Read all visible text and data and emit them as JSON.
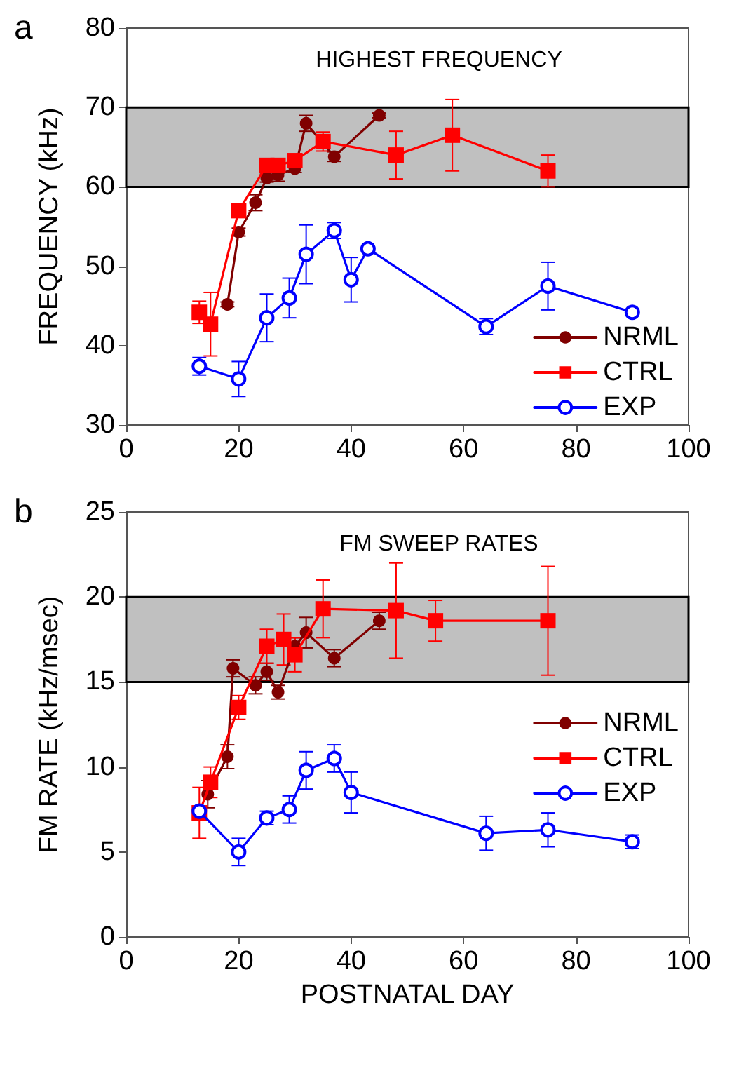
{
  "chart_data": [
    {
      "type": "line",
      "title": "HIGHEST FREQUENCY",
      "ylabel": "FREQUENCY (kHz)",
      "annotations": [
        "a"
      ],
      "xlim": [
        0,
        100
      ],
      "xticks": [
        0,
        20,
        40,
        60,
        80,
        100
      ],
      "ylim": [
        30,
        80
      ],
      "yticks": [
        30,
        40,
        50,
        60,
        70,
        80
      ],
      "grid": false,
      "legend": "right",
      "bands": [
        {
          "axis": "y",
          "from": 60,
          "to": 70,
          "color": "#c0c0c0"
        }
      ],
      "series": [
        {
          "name": "NRML",
          "color": "#800000",
          "marker": "circle",
          "x": [
            18,
            20,
            23,
            25,
            27,
            30,
            32,
            37,
            45
          ],
          "values": [
            45.2,
            54.3,
            58,
            61.1,
            61.5,
            62.3,
            68,
            63.8,
            69
          ],
          "errors": [
            0.3,
            0.5,
            1,
            0.5,
            0.8,
            0.5,
            1,
            0.6,
            0.3
          ]
        },
        {
          "name": "CTRL",
          "color": "#ff0000",
          "marker": "square",
          "x": [
            13,
            15,
            20,
            25,
            27,
            30,
            35,
            48,
            58,
            75
          ],
          "values": [
            44.2,
            42.7,
            57,
            62.7,
            62.7,
            63.3,
            65.7,
            64,
            66.5,
            62
          ],
          "errors": [
            1.4,
            4,
            0.8,
            0.5,
            0.5,
            0.8,
            1.2,
            3,
            4.5,
            2
          ]
        },
        {
          "name": "EXP",
          "color": "#0000ff",
          "marker": "open_circle",
          "x": [
            13,
            20,
            25,
            29,
            32,
            37,
            40,
            43,
            64,
            75,
            90
          ],
          "values": [
            37.4,
            35.8,
            43.5,
            46,
            51.5,
            54.5,
            48.3,
            52.2,
            42.4,
            47.5,
            44.2
          ],
          "errors": [
            1.1,
            2.2,
            3,
            2.5,
            3.7,
            1.0,
            2.8,
            null,
            1,
            3,
            null
          ]
        }
      ]
    },
    {
      "type": "line",
      "title": "FM SWEEP RATES",
      "xlabel": "POSTNATAL DAY",
      "ylabel": "FM RATE (kHz/msec)",
      "annotations": [
        "b"
      ],
      "xlim": [
        0,
        100
      ],
      "xticks": [
        0,
        20,
        40,
        60,
        80,
        100
      ],
      "ylim": [
        0,
        25
      ],
      "yticks": [
        0,
        5,
        10,
        15,
        20,
        25
      ],
      "grid": false,
      "legend": "right",
      "bands": [
        {
          "axis": "y",
          "from": 15,
          "to": 20,
          "color": "#c0c0c0"
        }
      ],
      "series": [
        {
          "name": "NRML",
          "color": "#800000",
          "marker": "circle",
          "x": [
            14.5,
            18,
            19,
            23,
            25,
            27,
            30,
            32,
            37,
            45
          ],
          "values": [
            8.4,
            10.6,
            15.8,
            14.8,
            15.6,
            14.4,
            17.1,
            17.9,
            16.4,
            18.6
          ],
          "errors": [
            0.8,
            0.7,
            0.5,
            0.5,
            0.5,
            0.4,
            0.5,
            0.9,
            0.5,
            0.5
          ]
        },
        {
          "name": "CTRL",
          "color": "#ff0000",
          "marker": "square",
          "x": [
            13,
            15,
            20,
            25,
            28,
            30,
            35,
            48,
            55,
            75
          ],
          "values": [
            7.3,
            9.1,
            13.5,
            17.1,
            17.5,
            16.6,
            19.3,
            19.2,
            18.6,
            18.6
          ],
          "errors": [
            1.5,
            0.9,
            0.7,
            1,
            1.5,
            1,
            1.7,
            2.8,
            1.2,
            3.2
          ]
        },
        {
          "name": "EXP",
          "color": "#0000ff",
          "marker": "open_circle",
          "x": [
            13,
            20,
            25,
            29,
            32,
            37,
            40,
            64,
            75,
            90
          ],
          "values": [
            7.4,
            5.0,
            7.0,
            7.5,
            9.8,
            10.5,
            8.5,
            6.1,
            6.3,
            5.6
          ],
          "errors": [
            null,
            0.8,
            0.4,
            0.8,
            1.1,
            0.8,
            1.2,
            1,
            1,
            0.4
          ]
        }
      ]
    }
  ]
}
